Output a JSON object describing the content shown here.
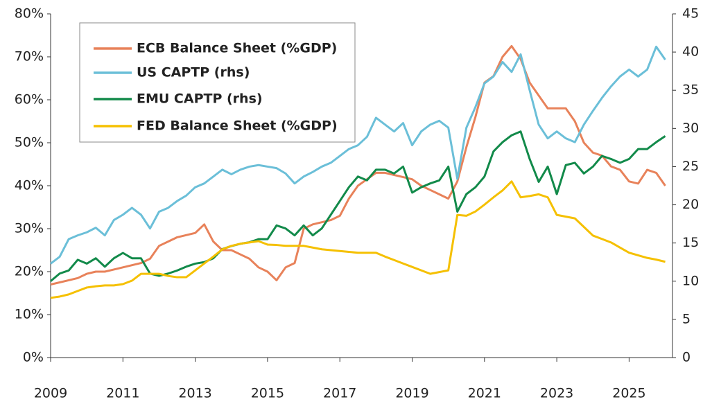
{
  "chart_data": {
    "type": "line",
    "x": [
      2009,
      2009.25,
      2009.5,
      2009.75,
      2010,
      2010.25,
      2010.5,
      2010.75,
      2011,
      2011.25,
      2011.5,
      2011.75,
      2012,
      2012.25,
      2012.5,
      2012.75,
      2013,
      2013.25,
      2013.5,
      2013.75,
      2014,
      2014.25,
      2014.5,
      2014.75,
      2015,
      2015.25,
      2015.5,
      2015.75,
      2016,
      2016.25,
      2016.5,
      2016.75,
      2017,
      2017.25,
      2017.5,
      2017.75,
      2018,
      2018.25,
      2018.5,
      2018.75,
      2019,
      2019.25,
      2019.5,
      2019.75,
      2020,
      2020.25,
      2020.5,
      2020.75,
      2021,
      2021.25,
      2021.5,
      2021.75,
      2022,
      2022.25,
      2022.5,
      2022.75,
      2023,
      2023.25,
      2023.5,
      2023.75,
      2024,
      2024.25,
      2024.5,
      2024.75,
      2025,
      2025.25,
      2025.5,
      2025.75,
      2026
    ],
    "series": [
      {
        "name": "ECB Balance Sheet (%GDP)",
        "color": "#e8825a",
        "axis": "y",
        "values": [
          17,
          17.5,
          18,
          18.5,
          19.5,
          20,
          20,
          20.5,
          21,
          21.5,
          22,
          23,
          26,
          27,
          28,
          28.5,
          29,
          31,
          27,
          25,
          25,
          24,
          23,
          21,
          20,
          18,
          21,
          22,
          30,
          31,
          31.5,
          32,
          33,
          37,
          40,
          41.5,
          43,
          43,
          42.5,
          42,
          41.5,
          40,
          39,
          38,
          37,
          41,
          49,
          56,
          64,
          65.5,
          70,
          72.5,
          69.5,
          64,
          61,
          58,
          58,
          58,
          55,
          50,
          47.7,
          47,
          44.5,
          43.7,
          41,
          40.5,
          43.7,
          43,
          40
        ]
      },
      {
        "name": "US CAPTP (rhs)",
        "color": "#6bbfd8",
        "axis": "y2",
        "values": [
          12.3,
          13.2,
          15.5,
          16,
          16.4,
          17,
          16,
          18,
          18.7,
          19.6,
          18.7,
          16.9,
          19.1,
          19.6,
          20.5,
          21.2,
          22.3,
          22.8,
          23.7,
          24.6,
          24,
          24.6,
          25,
          25.2,
          25,
          24.8,
          24.1,
          22.8,
          23.7,
          24.3,
          25,
          25.5,
          26.4,
          27.3,
          27.8,
          28.9,
          31.4,
          30.5,
          29.6,
          30.7,
          27.8,
          29.6,
          30.5,
          31,
          30.1,
          23.4,
          30.1,
          32.8,
          35.9,
          36.8,
          38.7,
          37.4,
          39.7,
          35,
          30.5,
          28.7,
          29.6,
          28.7,
          28.2,
          30.5,
          32.3,
          34,
          35.5,
          36.8,
          37.7,
          36.8,
          37.7,
          40.7,
          39
        ]
      },
      {
        "name": "EMU CAPTP (rhs)",
        "color": "#128a4a",
        "axis": "y2",
        "values": [
          10,
          11,
          11.4,
          12.8,
          12.3,
          13,
          11.9,
          13,
          13.7,
          13,
          13,
          11,
          10.7,
          11,
          11.4,
          11.9,
          12.3,
          12.5,
          13,
          14.2,
          14.6,
          14.9,
          15.1,
          15.5,
          15.5,
          17.3,
          16.9,
          16,
          17.3,
          16,
          16.9,
          18.7,
          20.5,
          22.3,
          23.7,
          23.2,
          24.6,
          24.6,
          24.1,
          25,
          21.6,
          22.3,
          22.8,
          23.2,
          25,
          19.1,
          21.4,
          22.3,
          23.7,
          27,
          28.2,
          29.1,
          29.6,
          26,
          23,
          25,
          21.4,
          25.2,
          25.5,
          24.1,
          25,
          26.4,
          26,
          25.5,
          26,
          27.3,
          27.3,
          28.2,
          29
        ]
      },
      {
        "name": "FED Balance Sheet (%GDP)",
        "color": "#f5c000",
        "axis": "y",
        "values": [
          13.9,
          14.2,
          14.7,
          15.5,
          16.3,
          16.6,
          16.8,
          16.8,
          17.1,
          17.9,
          19.5,
          19.5,
          19.5,
          19,
          18.7,
          18.7,
          20.3,
          21.9,
          23.5,
          25.2,
          26,
          26.5,
          26.8,
          27.1,
          26.3,
          26.2,
          26,
          26,
          26,
          25.6,
          25.2,
          25,
          24.8,
          24.6,
          24.4,
          24.4,
          24.4,
          23.5,
          22.7,
          21.9,
          21.1,
          20.3,
          19.5,
          19.9,
          20.3,
          33.2,
          33,
          34,
          35.6,
          37.3,
          38.9,
          41,
          37.3,
          37.6,
          38,
          37.3,
          33.2,
          32.8,
          32.4,
          30.4,
          28.4,
          27.6,
          26.8,
          25.6,
          24.4,
          23.8,
          23.2,
          22.8,
          22.3
        ]
      }
    ],
    "xlim": [
      2009,
      2026.2
    ],
    "xticks": [
      2009,
      2011,
      2013,
      2015,
      2017,
      2019,
      2021,
      2023,
      2025
    ],
    "ylim": [
      0,
      80
    ],
    "yticks": [
      {
        "value": 0,
        "label": "0%"
      },
      {
        "value": 10,
        "label": "10%"
      },
      {
        "value": 20,
        "label": "20%"
      },
      {
        "value": 30,
        "label": "30%"
      },
      {
        "value": 40,
        "label": "40%"
      },
      {
        "value": 50,
        "label": "50%"
      },
      {
        "value": 60,
        "label": "60%"
      },
      {
        "value": 70,
        "label": "70%"
      },
      {
        "value": 80,
        "label": "80%"
      }
    ],
    "y2lim": [
      0,
      45
    ],
    "y2ticks": [
      0,
      5,
      10,
      15,
      20,
      25,
      30,
      35,
      40,
      45
    ],
    "grid": false,
    "legend": "upper left"
  }
}
